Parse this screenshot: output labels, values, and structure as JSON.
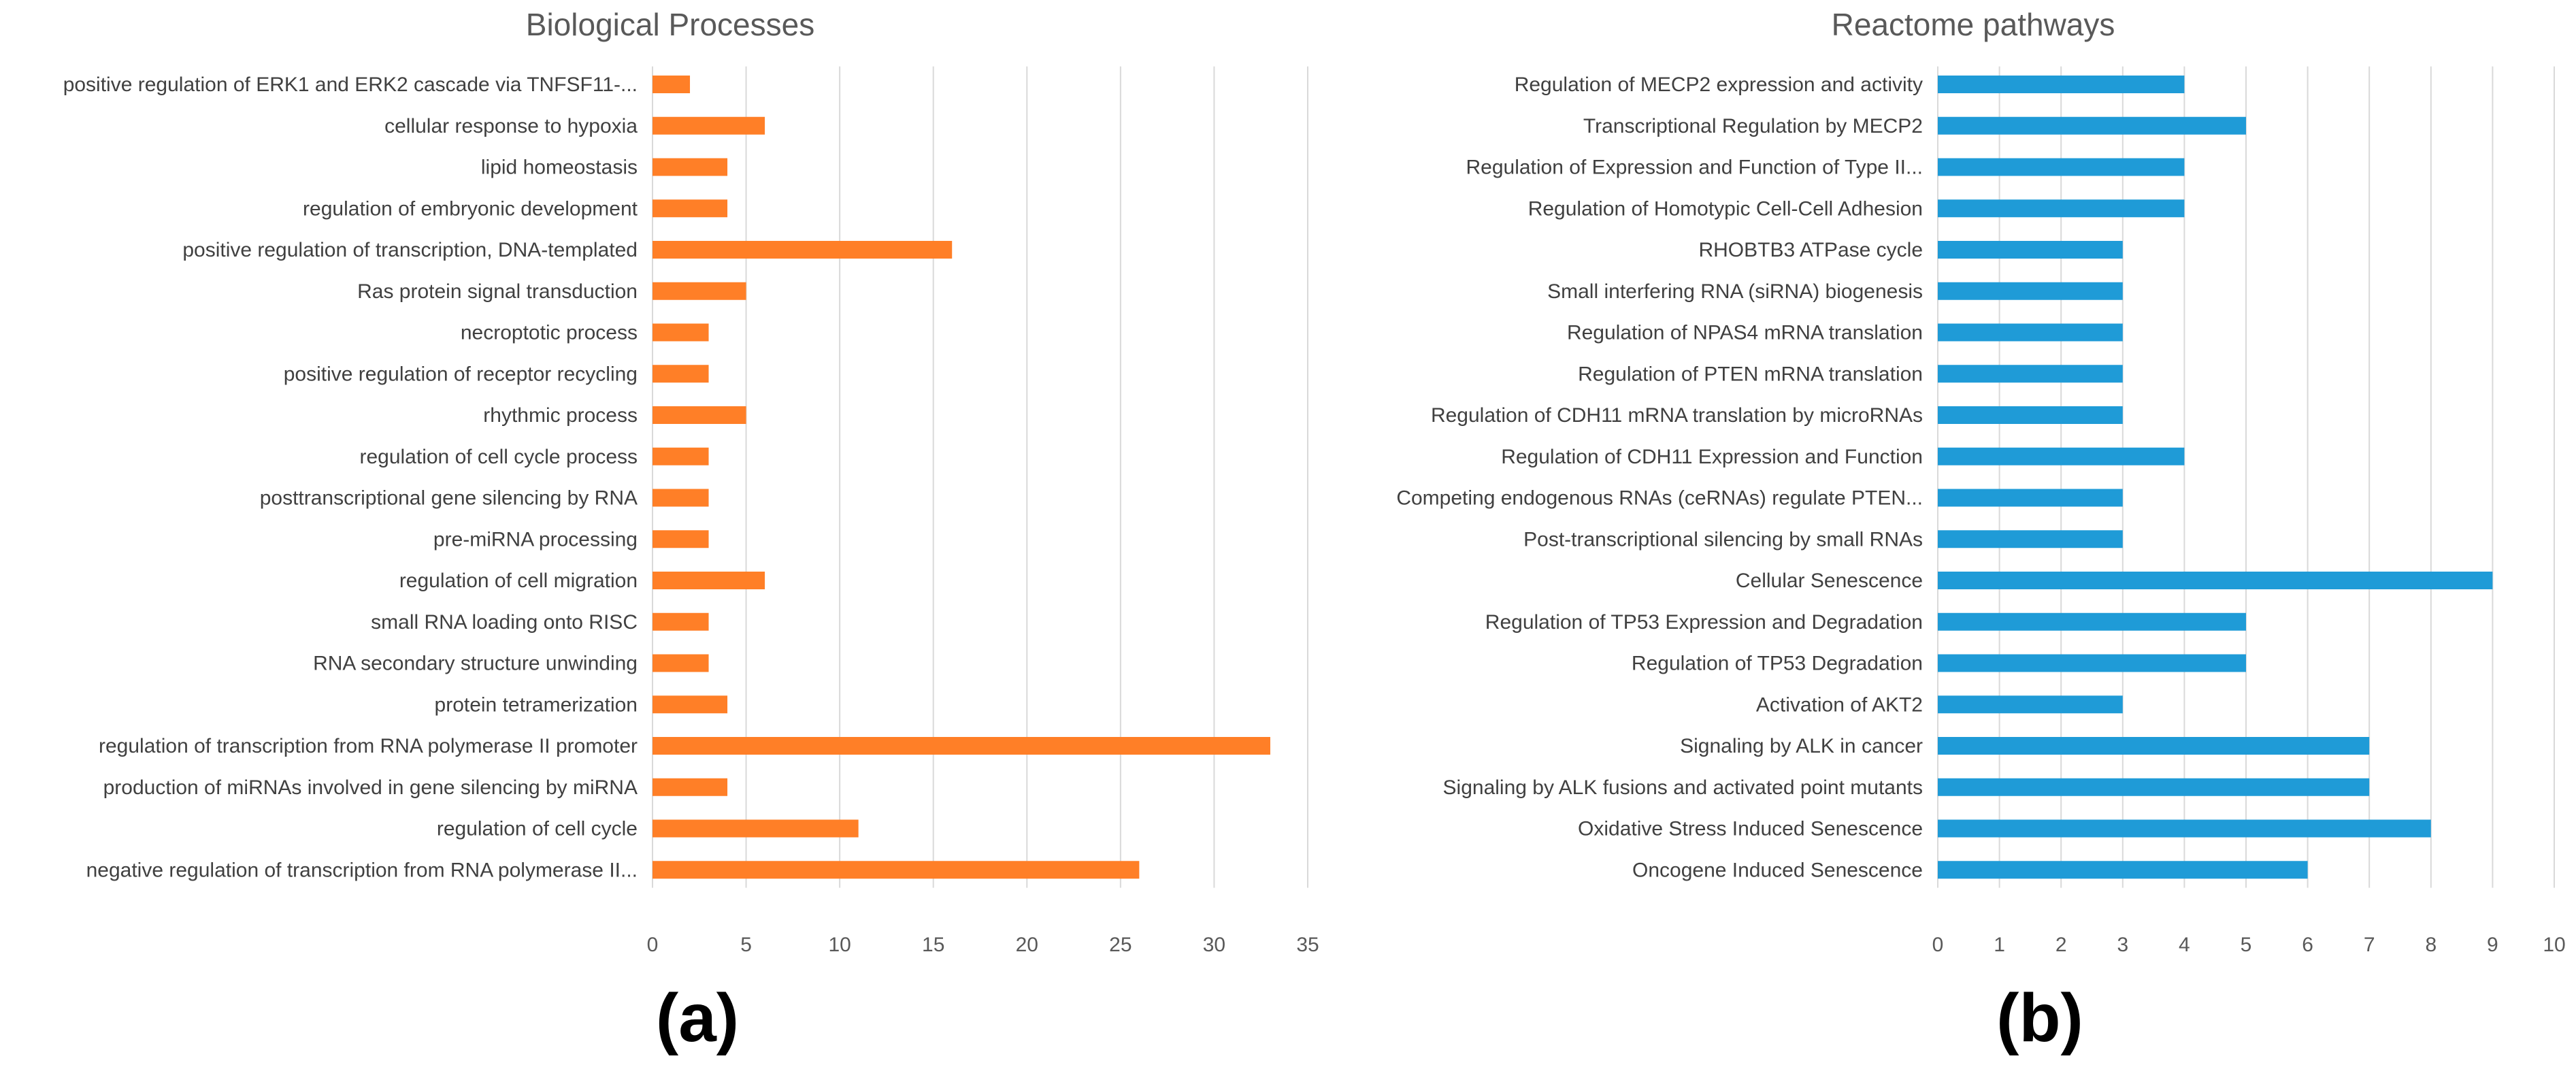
{
  "chart_data": [
    {
      "type": "bar",
      "orientation": "horizontal",
      "title": "Biological Processes",
      "panel_label": "(a)",
      "color": "#FF7F27",
      "categories": [
        "positive regulation of ERK1 and ERK2 cascade via TNFSF11-...",
        "cellular response to hypoxia",
        "lipid homeostasis",
        "regulation of embryonic development",
        "positive regulation of transcription, DNA-templated",
        "Ras protein signal transduction",
        "necroptotic process",
        "positive regulation of receptor recycling",
        "rhythmic process",
        "regulation of cell cycle process",
        "posttranscriptional gene silencing by RNA",
        "pre-miRNA processing",
        "regulation of cell migration",
        "small RNA loading onto RISC",
        "RNA secondary structure unwinding",
        "protein tetramerization",
        "regulation of transcription from RNA polymerase II promoter",
        "production of miRNAs involved in gene silencing by miRNA",
        "regulation of cell cycle",
        "negative regulation of transcription from RNA polymerase II..."
      ],
      "values": [
        2,
        6,
        4,
        4,
        16,
        5,
        3,
        3,
        5,
        3,
        3,
        3,
        6,
        3,
        3,
        4,
        33,
        4,
        11,
        26
      ],
      "xlim": [
        0,
        35
      ],
      "xticks": [
        0,
        5,
        10,
        15,
        20,
        25,
        30,
        35
      ],
      "xlabel": "",
      "ylabel": "",
      "grid": true
    },
    {
      "type": "bar",
      "orientation": "horizontal",
      "title": "Reactome pathways",
      "panel_label": "(b)",
      "color": "#1F9BD7",
      "categories": [
        "Regulation of MECP2 expression and activity",
        "Transcriptional Regulation by MECP2",
        "Regulation of Expression and Function of Type II...",
        "Regulation of Homotypic Cell-Cell Adhesion",
        "RHOBTB3 ATPase cycle",
        "Small interfering RNA (siRNA) biogenesis",
        "Regulation of NPAS4 mRNA translation",
        "Regulation of PTEN mRNA translation",
        "Regulation of CDH11 mRNA translation by microRNAs",
        "Regulation of CDH11 Expression and Function",
        "Competing endogenous RNAs (ceRNAs) regulate PTEN...",
        "Post-transcriptional silencing by small RNAs",
        "Cellular Senescence",
        "Regulation of TP53 Expression and Degradation",
        "Regulation of TP53 Degradation",
        "Activation of AKT2",
        "Signaling by ALK in cancer",
        "Signaling by ALK fusions and activated point mutants",
        "Oxidative Stress Induced Senescence",
        "Oncogene Induced Senescence"
      ],
      "values": [
        4,
        5,
        4,
        4,
        3,
        3,
        3,
        3,
        3,
        4,
        3,
        3,
        9,
        5,
        5,
        3,
        7,
        7,
        8,
        6
      ],
      "xlim": [
        0,
        10
      ],
      "xticks": [
        0,
        1,
        2,
        3,
        4,
        5,
        6,
        7,
        8,
        9,
        10
      ],
      "xlabel": "",
      "ylabel": "",
      "grid": true
    }
  ]
}
